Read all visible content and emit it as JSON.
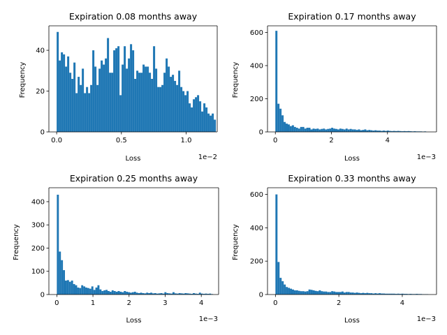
{
  "colors": {
    "bar": "#1f77b4",
    "axis": "#000000",
    "background": "#ffffff"
  },
  "chart_data": [
    {
      "type": "bar",
      "title": "Expiration 0.08 months away",
      "xlabel": "Loss",
      "ylabel": "Frequency",
      "offset_text": "1e−2",
      "xlim": [
        -0.06,
        1.24
      ],
      "ylim": [
        0,
        52
      ],
      "xticks": [
        0.0,
        0.5,
        1.0
      ],
      "xtick_labels": [
        "0.0",
        "0.5",
        "1.0"
      ],
      "yticks": [
        0,
        20,
        40
      ],
      "ytick_labels": [
        "0",
        "20",
        "40"
      ],
      "bin_start": 0.0,
      "bin_width": 0.01618,
      "values": [
        49,
        35,
        39,
        38,
        32,
        37,
        29,
        26,
        34,
        19,
        27,
        23,
        31,
        19,
        22,
        19,
        23,
        40,
        32,
        23,
        31,
        35,
        33,
        36,
        46,
        29,
        29,
        40,
        41,
        42,
        18,
        33,
        42,
        31,
        36,
        43,
        40,
        26,
        30,
        29,
        29,
        33,
        32,
        32,
        29,
        26,
        42,
        31,
        22,
        22,
        23,
        29,
        36,
        32,
        27,
        28,
        25,
        23,
        30,
        22,
        20,
        18,
        20,
        14,
        12,
        16,
        17,
        18,
        15,
        10,
        14,
        12,
        9,
        8,
        9,
        6
      ]
    },
    {
      "type": "bar",
      "title": "Expiration 0.17 months away",
      "xlabel": "Loss",
      "ylabel": "Frequency",
      "offset_text": "1e−3",
      "xlim": [
        -0.28,
        5.75
      ],
      "ylim": [
        0,
        640
      ],
      "xticks": [
        0,
        2,
        4
      ],
      "xtick_labels": [
        "0",
        "2",
        "4"
      ],
      "yticks": [
        0,
        200,
        400,
        600
      ],
      "ytick_labels": [
        "0",
        "200",
        "400",
        "600"
      ],
      "bin_start": 0.0,
      "bin_width": 0.0737,
      "values": [
        610,
        170,
        140,
        100,
        60,
        50,
        45,
        35,
        40,
        30,
        25,
        20,
        30,
        30,
        20,
        25,
        25,
        15,
        20,
        18,
        20,
        15,
        18,
        20,
        15,
        18,
        20,
        25,
        20,
        18,
        15,
        20,
        18,
        15,
        20,
        15,
        18,
        15,
        15,
        12,
        15,
        10,
        12,
        15,
        10,
        12,
        10,
        8,
        10,
        8,
        8,
        6,
        8,
        6,
        8,
        6,
        5,
        6,
        5,
        6,
        5,
        4,
        5,
        4,
        5,
        4,
        3,
        4,
        3,
        3,
        3,
        2,
        3
      ]
    },
    {
      "type": "bar",
      "title": "Expiration 0.25 months away",
      "xlabel": "Loss",
      "ylabel": "Frequency",
      "offset_text": "1e−3",
      "xlim": [
        -0.22,
        4.48
      ],
      "ylim": [
        0,
        460
      ],
      "xticks": [
        0,
        1,
        2,
        3,
        4
      ],
      "xtick_labels": [
        "0",
        "1",
        "2",
        "3",
        "4"
      ],
      "yticks": [
        0,
        100,
        200,
        300,
        400
      ],
      "ytick_labels": [
        "0",
        "100",
        "200",
        "300",
        "400"
      ],
      "bin_start": 0.0,
      "bin_width": 0.0562,
      "values": [
        430,
        185,
        148,
        105,
        60,
        62,
        55,
        60,
        45,
        40,
        30,
        28,
        40,
        35,
        30,
        28,
        25,
        35,
        20,
        30,
        40,
        22,
        15,
        18,
        20,
        15,
        12,
        18,
        15,
        12,
        15,
        12,
        10,
        15,
        12,
        10,
        8,
        10,
        12,
        8,
        6,
        8,
        6,
        5,
        8,
        6,
        8,
        5,
        6,
        4,
        5,
        6,
        4,
        10,
        6,
        5,
        4,
        10,
        5,
        4,
        6,
        5,
        4,
        6,
        5,
        4,
        3,
        6,
        4,
        3,
        8,
        4,
        3,
        4,
        3,
        4,
        2
      ]
    },
    {
      "type": "bar",
      "title": "Expiration 0.33 months away",
      "xlabel": "Loss",
      "ylabel": "Frequency",
      "offset_text": "1e−3",
      "xlim": [
        -0.25,
        5.08
      ],
      "ylim": [
        0,
        640
      ],
      "xticks": [
        0,
        2,
        4
      ],
      "xtick_labels": [
        "0",
        "2",
        "4"
      ],
      "yticks": [
        0,
        200,
        400,
        600
      ],
      "ytick_labels": [
        "0",
        "200",
        "400",
        "600"
      ],
      "bin_start": 0.0,
      "bin_width": 0.0651,
      "values": [
        600,
        195,
        100,
        80,
        60,
        45,
        40,
        35,
        30,
        25,
        25,
        22,
        20,
        20,
        18,
        20,
        30,
        28,
        25,
        22,
        20,
        25,
        20,
        18,
        18,
        15,
        15,
        20,
        18,
        15,
        15,
        15,
        18,
        12,
        15,
        15,
        12,
        12,
        10,
        12,
        10,
        8,
        10,
        8,
        10,
        8,
        8,
        6,
        8,
        6,
        8,
        6,
        6,
        5,
        5,
        5,
        5,
        5,
        4,
        5,
        4,
        5,
        4,
        4,
        3,
        4,
        3,
        3,
        4,
        3,
        3,
        2,
        2,
        2
      ]
    }
  ]
}
